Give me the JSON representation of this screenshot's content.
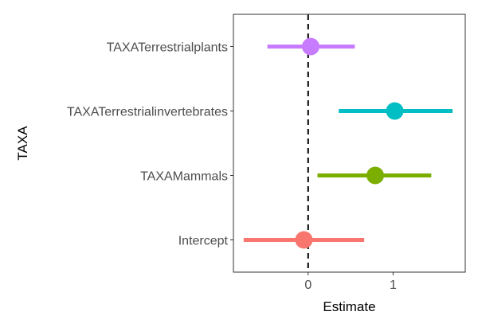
{
  "chart_data": {
    "type": "coefficient-plot",
    "xlabel": "Estimate",
    "ylabel": "TAXA",
    "xlim": [
      -0.88,
      1.85
    ],
    "x_ticks": [
      0,
      1
    ],
    "reference_line": {
      "x": 0,
      "style": "dashed"
    },
    "grid": false,
    "legend": "none",
    "terms": [
      {
        "label": "TAXATerrestrialplants",
        "estimate": 0.03,
        "lower": -0.48,
        "upper": 0.55,
        "color": "#C77CFF"
      },
      {
        "label": "TAXATerrestrialinvertebrates",
        "estimate": 1.02,
        "lower": 0.36,
        "upper": 1.7,
        "color": "#00BFC4"
      },
      {
        "label": "TAXAMammals",
        "estimate": 0.79,
        "lower": 0.11,
        "upper": 1.45,
        "color": "#7CAE00"
      },
      {
        "label": "Intercept",
        "estimate": -0.05,
        "lower": -0.76,
        "upper": 0.66,
        "color": "#F8766D"
      }
    ]
  }
}
